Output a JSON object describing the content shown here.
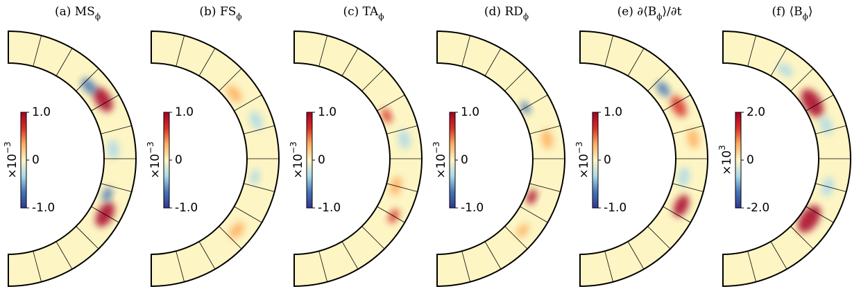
{
  "chart_data": [
    {
      "type": "annulus",
      "title": [
        {
          "text": "(a) MS"
        },
        {
          "text": "ϕ",
          "sub": true
        }
      ],
      "colorbar": {
        "label": [
          {
            "text": "×10"
          },
          {
            "text": "−3",
            "sup": true
          }
        ],
        "lim": [
          -1,
          1
        ],
        "ticks": [
          {
            "value": -1,
            "label": "-1.0"
          },
          0,
          {
            "value": 1,
            "label": "1.0"
          }
        ]
      }
    },
    {
      "type": "annulus",
      "title": [
        {
          "text": "(b) FS"
        },
        {
          "text": "ϕ",
          "sub": true
        }
      ],
      "colorbar": {
        "label": [
          {
            "text": "×10"
          },
          {
            "text": "−3",
            "sup": true
          }
        ],
        "lim": [
          -1,
          1
        ],
        "ticks": [
          {
            "value": -1,
            "label": "-1.0"
          },
          0,
          {
            "value": 1,
            "label": "1.0"
          }
        ]
      }
    },
    {
      "type": "annulus",
      "title": [
        {
          "text": "(c) TA"
        },
        {
          "text": "ϕ",
          "sub": true
        }
      ],
      "colorbar": {
        "label": [
          {
            "text": "×10"
          },
          {
            "text": "−3",
            "sup": true
          }
        ],
        "lim": [
          -1,
          1
        ],
        "ticks": [
          {
            "value": -1,
            "label": "-1.0"
          },
          0,
          {
            "value": 1,
            "label": "1.0"
          }
        ]
      }
    },
    {
      "type": "annulus",
      "title": [
        {
          "text": "(d) RD"
        },
        {
          "text": "ϕ",
          "sub": true
        }
      ],
      "colorbar": {
        "label": [
          {
            "text": "×10"
          },
          {
            "text": "−3",
            "sup": true
          }
        ],
        "lim": [
          -1,
          1
        ],
        "ticks": [
          {
            "value": -1,
            "label": "-1.0"
          },
          0,
          {
            "value": 1,
            "label": "1.0"
          }
        ]
      }
    },
    {
      "type": "annulus",
      "title": [
        {
          "text": "(e) ∂⟨B"
        },
        {
          "text": "ϕ",
          "sub": true
        },
        {
          "text": "⟩/∂t"
        }
      ],
      "colorbar": {
        "label": [
          {
            "text": "×10"
          },
          {
            "text": "−3",
            "sup": true
          }
        ],
        "lim": [
          -1,
          1
        ],
        "ticks": [
          {
            "value": -1,
            "label": "-1.0"
          },
          0,
          {
            "value": 1,
            "label": "1.0"
          }
        ]
      }
    },
    {
      "type": "annulus",
      "title": [
        {
          "text": "(f) ⟨B"
        },
        {
          "text": "ϕ",
          "sub": true
        },
        {
          "text": "⟩"
        }
      ],
      "colorbar": {
        "label": [
          {
            "text": "×10"
          },
          {
            "text": "3",
            "sup": true
          }
        ],
        "lim": [
          -2,
          2
        ],
        "ticks": [
          {
            "value": -2,
            "label": "-2.0"
          },
          0,
          {
            "value": 2,
            "label": "2.0"
          }
        ]
      }
    }
  ],
  "colormap": [
    "#313695",
    "#4575b4",
    "#abd9e9",
    "#fdf5c4",
    "#fdae61",
    "#d73027",
    "#a50026"
  ]
}
